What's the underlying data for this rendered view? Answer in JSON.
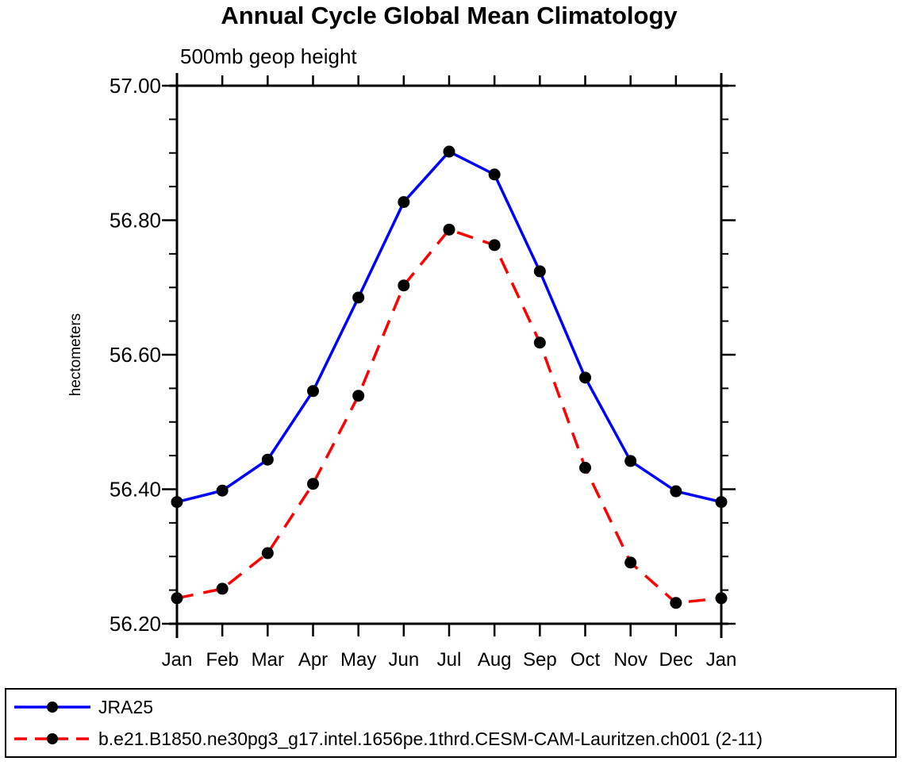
{
  "figure": {
    "title": "Annual Cycle Global Mean Climatology",
    "subtitle": "500mb geop height",
    "ylabel": "hectometers"
  },
  "colors": {
    "background": "#ffffff",
    "axis": "#000000",
    "marker": "#000000",
    "series_jra25": "#0000ff",
    "series_cesm": "#ff0000"
  },
  "chart_data": {
    "type": "line",
    "title": "Annual Cycle Global Mean Climatology",
    "subtitle": "500mb geop height",
    "xlabel": "",
    "ylabel": "hectometers",
    "categories": [
      "Jan",
      "Feb",
      "Mar",
      "Apr",
      "May",
      "Jun",
      "Jul",
      "Aug",
      "Sep",
      "Oct",
      "Nov",
      "Dec",
      "Jan"
    ],
    "ylim": [
      56.2,
      57.0
    ],
    "ytick_major": [
      56.2,
      56.4,
      56.6,
      56.8,
      57.0
    ],
    "ytick_labels": [
      "56.20",
      "56.40",
      "56.60",
      "56.80",
      "57.00"
    ],
    "ytick_minor_step": 0.05,
    "grid": false,
    "legend_position": "bottom",
    "series": [
      {
        "name": "JRA25",
        "color": "#0000ff",
        "style": "solid",
        "marker": "circle",
        "marker_color": "#000000",
        "values": [
          56.381,
          56.398,
          56.444,
          56.546,
          56.685,
          56.827,
          56.902,
          56.868,
          56.724,
          56.566,
          56.442,
          56.397,
          56.381
        ]
      },
      {
        "name": "b.e21.B1850.ne30pg3_g17.intel.1656pe.1thrd.CESM-CAM-Lauritzen.ch001 (2-11)",
        "color": "#ff0000",
        "style": "dashed",
        "marker": "circle",
        "marker_color": "#000000",
        "values": [
          56.238,
          56.252,
          56.305,
          56.408,
          56.539,
          56.703,
          56.786,
          56.763,
          56.618,
          56.432,
          56.291,
          56.231,
          56.238
        ]
      }
    ]
  }
}
